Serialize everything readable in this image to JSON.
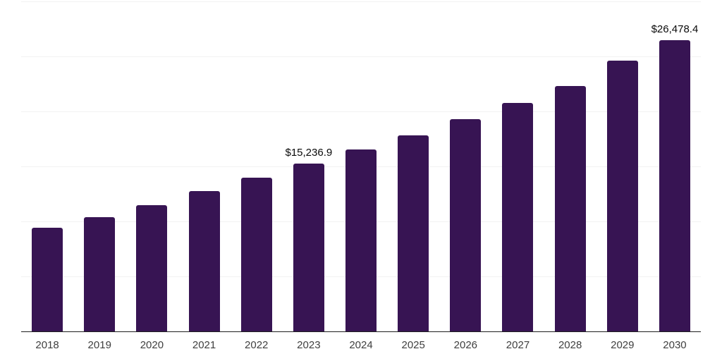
{
  "chart_data": {
    "type": "bar",
    "title": "",
    "xlabel": "",
    "ylabel": "",
    "categories": [
      "2018",
      "2019",
      "2020",
      "2021",
      "2022",
      "2023",
      "2024",
      "2025",
      "2026",
      "2027",
      "2028",
      "2029",
      "2030"
    ],
    "values": [
      9420,
      10380,
      11470,
      12760,
      13970,
      15236.9,
      16540,
      17820,
      19290,
      20770,
      22310,
      24610,
      26478.4
    ],
    "bar_labels": [
      "",
      "",
      "",
      "",
      "",
      "$15,236.9",
      "",
      "",
      "",
      "",
      "",
      "",
      "$26,478.4"
    ],
    "ylim": [
      0,
      30000
    ],
    "gridline_step": 5000,
    "grid": "horizontal-only",
    "legend_position": "none",
    "y_axis_tick_labels_visible": false
  },
  "colors": {
    "bar": "#371453",
    "gridline": "#f2f2f2",
    "axis_line": "#1f1f1f",
    "tick_label": "#3f3f3f",
    "data_label": "#0a0a0a",
    "background": "#ffffff"
  }
}
